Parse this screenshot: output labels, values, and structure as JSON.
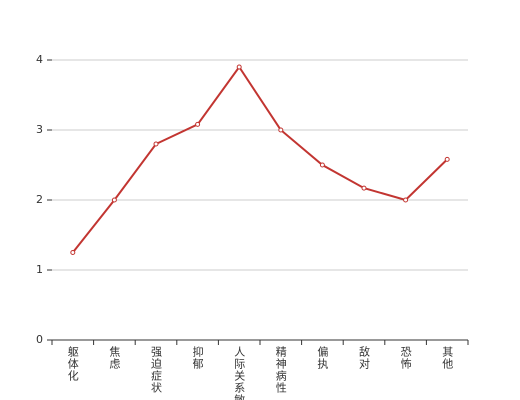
{
  "chart_data": {
    "type": "line",
    "categories": [
      "躯体化",
      "焦虑",
      "强迫症状",
      "抑郁",
      "人际关系敏感",
      "精神病性",
      "偏执",
      "敌对",
      "恐怖",
      "其他"
    ],
    "series": [
      {
        "color": "#c23531",
        "values": [
          1.25,
          2.0,
          2.8,
          3.08,
          3.9,
          3.0,
          2.5,
          2.17,
          2.0,
          2.58
        ]
      }
    ],
    "ylim": [
      0,
      4
    ],
    "yticks": [
      0,
      1,
      2,
      3,
      4
    ],
    "grid": true
  }
}
